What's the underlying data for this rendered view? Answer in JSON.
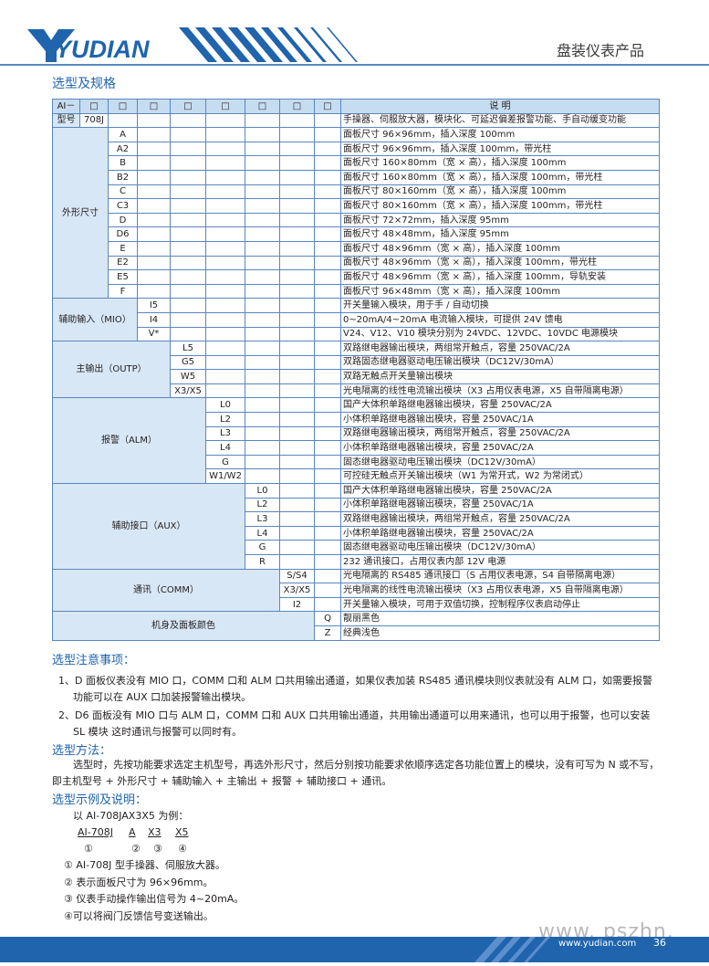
{
  "header": {
    "logo": "YUDIAN",
    "title": "盘装仪表产品"
  },
  "section_title": "选型及规格",
  "table": {
    "prefix": "AI－",
    "boxes": [
      "□",
      "□",
      "□",
      "□",
      "□",
      "□",
      "□",
      "□"
    ],
    "desc_header": "说 明",
    "model": {
      "label": "型号",
      "code": "708J",
      "desc": "手操器、伺服放大器，模块化、可延迟偏差报警功能、手自动缓变功能"
    },
    "groups": [
      {
        "label": "外形尺寸",
        "rows": [
          {
            "code": "A",
            "desc": "面板尺寸 96×96mm，插入深度 100mm"
          },
          {
            "code": "A2",
            "desc": "面板尺寸 96×96mm，插入深度 100mm，带光柱"
          },
          {
            "code": "B",
            "desc": "面板尺寸 160×80mm（宽 × 高），插入深度 100mm"
          },
          {
            "code": "B2",
            "desc": "面板尺寸 160×80mm（宽 × 高），插入深度 100mm，带光柱"
          },
          {
            "code": "C",
            "desc": "面板尺寸 80×160mm（宽 × 高），插入深度 100mm"
          },
          {
            "code": "C3",
            "desc": "面板尺寸 80×160mm（宽 × 高），插入深度 100mm，带光柱"
          },
          {
            "code": "D",
            "desc": "面板尺寸 72×72mm，插入深度 95mm"
          },
          {
            "code": "D6",
            "desc": "面板尺寸 48×48mm，插入深度 95mm"
          },
          {
            "code": "E",
            "desc": "面板尺寸 48×96mm（宽 × 高），插入深度 100mm"
          },
          {
            "code": "E2",
            "desc": "面板尺寸 48×96mm（宽 × 高），插入深度 100mm，带光柱"
          },
          {
            "code": "E5",
            "desc": "面板尺寸 48×96mm（宽 × 高），插入深度 100mm，导轨安装"
          },
          {
            "code": "F",
            "desc": "面板尺寸 96×48mm（宽 × 高），插入深度 100mm"
          }
        ]
      },
      {
        "label": "辅助输入（MIO）",
        "rows": [
          {
            "code": "I5",
            "desc": "开关量输入模块，用于手 / 自动切换"
          },
          {
            "code": "I4",
            "desc": "0~20mA/4~20mA 电流输入模块，可提供 24V 馈电"
          },
          {
            "code": "V*",
            "desc": "V24、V12、V10 模块分别为 24VDC、12VDC、10VDC 电源模块"
          }
        ]
      },
      {
        "label": "主输出（OUTP）",
        "rows": [
          {
            "code": "L5",
            "desc": "双路继电器输出模块，两组常开触点，容量 250VAC/2A"
          },
          {
            "code": "G5",
            "desc": "双路固态继电器驱动电压输出模块（DC12V/30mA）"
          },
          {
            "code": "W5",
            "desc": "双路无触点开关量输出模块"
          },
          {
            "code": "X3/X5",
            "desc": "光电隔离的线性电流输出模块（X3 占用仪表电源，X5 自带隔离电源）"
          }
        ]
      },
      {
        "label": "报警（ALM）",
        "rows": [
          {
            "code": "L0",
            "desc": "国产大体积单路继电器输出模块，容量 250VAC/2A"
          },
          {
            "code": "L2",
            "desc": "小体积单路继电器输出模块，容量 250VAC/1A"
          },
          {
            "code": "L3",
            "desc": "双路继电器输出模块，两组常开触点，容量 250VAC/2A"
          },
          {
            "code": "L4",
            "desc": "小体积单路继电器输出模块，容量 250VAC/2A"
          },
          {
            "code": "G",
            "desc": "固态继电器驱动电压输出模块（DC12V/30mA）"
          },
          {
            "code": "W1/W2",
            "desc": "可控硅无触点开关输出模块（W1 为常开式，W2 为常闭式）"
          }
        ]
      },
      {
        "label": "辅助接口（AUX）",
        "rows": [
          {
            "code": "L0",
            "desc": "国产大体积单路继电器输出模块，容量 250VAC/2A"
          },
          {
            "code": "L2",
            "desc": "小体积单路继电器输出模块，容量 250VAC/1A"
          },
          {
            "code": "L3",
            "desc": "双路继电器输出模块，两组常开触点，容量 250VAC/2A"
          },
          {
            "code": "L4",
            "desc": "小体积单路继电器输出模块，容量 250VAC/2A"
          },
          {
            "code": "G",
            "desc": "固态继电器驱动电压输出模块（DC12V/30mA）"
          },
          {
            "code": "R",
            "desc": "232 通讯接口，占用仪表内部 12V 电源"
          }
        ]
      },
      {
        "label": "通讯（COMM）",
        "rows": [
          {
            "code": "S/S4",
            "desc": "光电隔离的 RS485 通讯接口（S 占用仪表电源，S4 自带隔离电源）"
          },
          {
            "code": "X3/X5",
            "desc": "光电隔离的线性电流输出模块（X3 占用仪表电源，X5 自带隔离电源）"
          },
          {
            "code": "I2",
            "desc": "开关量输入模块，可用于双值切换，控制程序仪表启动停止"
          }
        ]
      },
      {
        "label": "机身及面板颜色",
        "rows": [
          {
            "code": "Q",
            "desc": "靓丽黑色"
          },
          {
            "code": "Z",
            "desc": "经典浅色"
          }
        ]
      }
    ]
  },
  "notes": {
    "title": "选型注意事项：",
    "items": [
      "1、D 面板仪表没有 MIO 口，COMM 口和 ALM 口共用输出通道，如果仪表加装 RS485 通讯模块则仪表就没有 ALM 口，如需要报警功能可以在 AUX 口加装报警输出模块。",
      "2、D6 面板没有 MIO 口与 ALM 口，COMM 口和 AUX 口共用输出通道，共用输出通道可以用来通讯，也可以用于报警，也可以安装 SL 模块 这时通讯与报警可以同时有。"
    ]
  },
  "method": {
    "title": "选型方法：",
    "text": "选型时，先按功能要求选定主机型号，再选外形尺寸，然后分别按功能要求依顺序选定各功能位置上的模块，没有可写为 N 或不写，即主机型号 + 外形尺寸 + 辅助输入 + 主输出 + 报警 + 辅助接口 + 通讯。"
  },
  "example": {
    "title": "选型示例及说明：",
    "intro": "以 AI-708JAX3X5 为例：",
    "codes": [
      "AI-708J",
      "A",
      "X3",
      "X5"
    ],
    "markers": [
      "①",
      "②",
      "③",
      "④"
    ],
    "lines": [
      "① AI-708J 型手操器、伺服放大器。",
      "② 表示面板尺寸为 96×96mm。",
      "③ 仪表手动操作输出信号为 4~20mA。",
      "④可以将阀门反馈信号变送输出。"
    ]
  },
  "watermark": "www. pszhn. com",
  "footer": {
    "url": "www.yudian.com",
    "page": "36"
  }
}
